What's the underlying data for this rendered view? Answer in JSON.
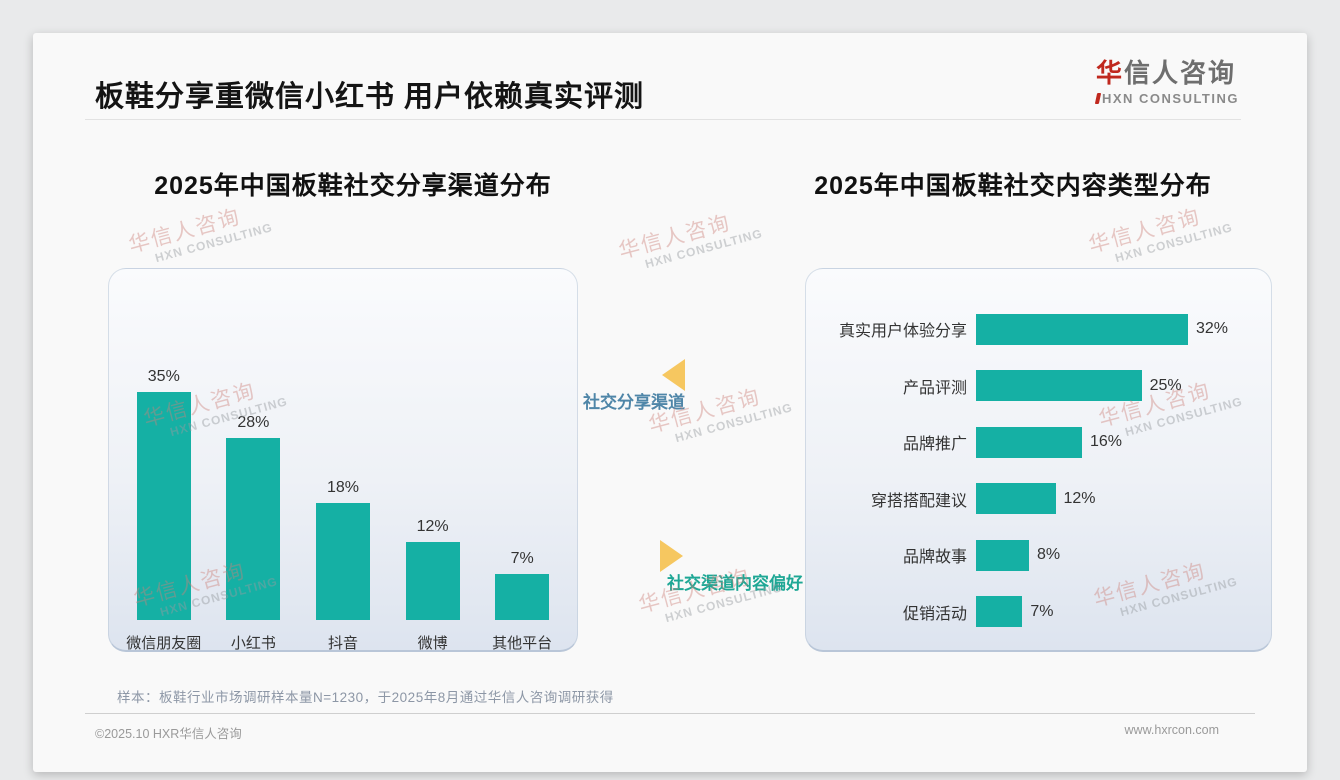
{
  "page": {
    "title": "板鞋分享重微信小红书 用户依赖真实评测",
    "logo": {
      "cn_accent": "华",
      "cn_rest": "信人咨询",
      "en": "HXN CONSULTING"
    },
    "sample_note": "样本：板鞋行业市场调研样本量N=1230，于2025年8月通过华信人咨询调研获得",
    "footer": {
      "left": "©2025.10 HXR华信人咨询",
      "right": "www.hxrcon.com"
    },
    "watermark": {
      "cn": "华信人咨询",
      "en": "HXN CONSULTING"
    }
  },
  "annotations": {
    "share_channel": {
      "label": "社交分享渠道",
      "color": "#4f86a8",
      "arrow": "left",
      "arrow_color": "#f6c760"
    },
    "content_pref": {
      "label": "社交渠道内容偏好",
      "color": "#1ea795",
      "arrow": "right",
      "arrow_color": "#f6c760"
    }
  },
  "chart_data": [
    {
      "type": "bar",
      "orientation": "vertical",
      "title": "2025年中国板鞋社交分享渠道分布",
      "categories": [
        "微信朋友圈",
        "小红书",
        "抖音",
        "微博",
        "其他平台"
      ],
      "values": [
        35,
        28,
        18,
        12,
        7
      ],
      "unit": "%",
      "bar_color": "#15b0a4",
      "ylim": [
        0,
        35
      ],
      "grid": false,
      "legend": "none"
    },
    {
      "type": "bar",
      "orientation": "horizontal",
      "title": "2025年中国板鞋社交内容类型分布",
      "categories": [
        "真实用户体验分享",
        "产品评测",
        "品牌推广",
        "穿搭搭配建议",
        "品牌故事",
        "促销活动"
      ],
      "values": [
        32,
        25,
        16,
        12,
        8,
        7
      ],
      "unit": "%",
      "bar_color": "#15b0a4",
      "xlim": [
        0,
        32
      ],
      "grid": false,
      "legend": "none"
    }
  ]
}
